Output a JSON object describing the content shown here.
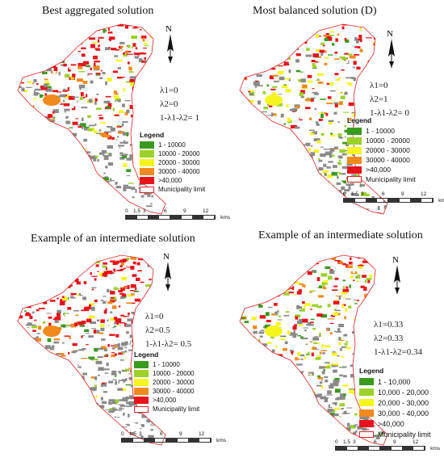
{
  "panels": [
    {
      "title": "Best aggregated solution",
      "lambdas": [
        "λ1=0",
        "λ2=0",
        "1-λ1-λ2= 1"
      ],
      "map_mix": "red"
    },
    {
      "title": "Most balanced solution (D)",
      "lambdas": [
        "λ1=0",
        "λ2=1",
        "1-λ1-λ2= 0"
      ],
      "map_mix": "mixed"
    },
    {
      "title": "Example of an intermediate solution",
      "lambdas": [
        "λ1=0",
        "λ2=0.5",
        "1-λ1-λ2= 0.5"
      ],
      "map_mix": "red"
    },
    {
      "title": "Example of an intermediate solution",
      "lambdas": [
        "λ1=0.33",
        "λ2=0.33",
        "1-λ1-λ2=0.34"
      ],
      "map_mix": "mixed"
    }
  ],
  "north_label": "N",
  "legend": {
    "heading": "Legend",
    "classes_short": [
      "1 - 10000",
      "10000 - 20000",
      "20000 - 30000",
      "30000 - 40000",
      ">40000"
    ],
    "classes_comma": [
      "1 - 10,000",
      "10,000 - 20,000",
      "20,000 - 30,000",
      "30,000 - 40,000",
      ">40,000"
    ],
    "colors": [
      "#3a9a1f",
      "#9cd12a",
      "#f5f51e",
      "#f08a1c",
      "#e8121a"
    ],
    "limit_label": "Municipality limit"
  },
  "scale": {
    "ticks": [
      "0",
      "1.5",
      "3",
      "6",
      "9",
      "12"
    ],
    "units": "kms"
  }
}
